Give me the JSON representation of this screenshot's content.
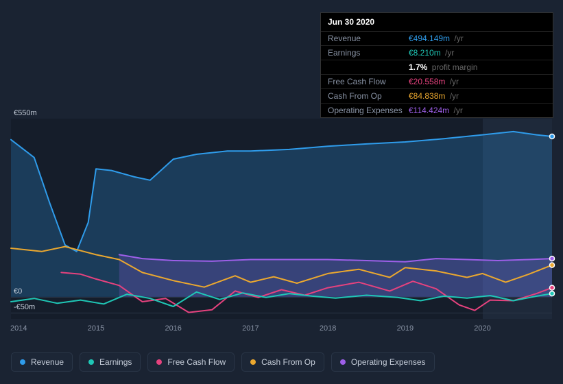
{
  "tooltip": {
    "date": "Jun 30 2020",
    "rows": [
      {
        "label": "Revenue",
        "value": "€494.149m",
        "unit": "/yr",
        "cls": "v-revenue"
      },
      {
        "label": "Earnings",
        "value": "€8.210m",
        "unit": "/yr",
        "cls": "v-earnings"
      },
      {
        "label": "",
        "value": "1.7%",
        "unit": "profit margin",
        "cls": "v-white"
      },
      {
        "label": "Free Cash Flow",
        "value": "€20.558m",
        "unit": "/yr",
        "cls": "v-fcf"
      },
      {
        "label": "Cash From Op",
        "value": "€84.838m",
        "unit": "/yr",
        "cls": "v-cashop"
      },
      {
        "label": "Operating Expenses",
        "value": "€114.424m",
        "unit": "/yr",
        "cls": "v-opex"
      }
    ]
  },
  "chart": {
    "type": "line+area",
    "background_color": "#151d2a",
    "page_background": "#1a2332",
    "highlight_band": {
      "color": "rgba(50,65,90,0.35)",
      "from_x": 2020.0,
      "to_x": 2020.9
    },
    "y_axis": {
      "ticks": [
        {
          "value": 550,
          "label": "€550m"
        },
        {
          "value": 0,
          "label": "€0"
        },
        {
          "value": -50,
          "label": "-€50m"
        }
      ],
      "min": -68,
      "max": 550
    },
    "x_axis": {
      "min": 2013.9,
      "max": 2020.9,
      "ticks": [
        {
          "value": 2014,
          "label": "2014"
        },
        {
          "value": 2015,
          "label": "2015"
        },
        {
          "value": 2016,
          "label": "2016"
        },
        {
          "value": 2017,
          "label": "2017"
        },
        {
          "value": 2018,
          "label": "2018"
        },
        {
          "value": 2019,
          "label": "2019"
        },
        {
          "value": 2020,
          "label": "2020"
        }
      ]
    },
    "series": [
      {
        "name": "Revenue",
        "color": "#2f9ceb",
        "marker_end": true,
        "area": true,
        "area_opacity": 0.25,
        "points": [
          [
            2013.9,
            485
          ],
          [
            2014.2,
            430
          ],
          [
            2014.4,
            290
          ],
          [
            2014.6,
            160
          ],
          [
            2014.75,
            140
          ],
          [
            2014.9,
            230
          ],
          [
            2015.0,
            395
          ],
          [
            2015.2,
            390
          ],
          [
            2015.5,
            370
          ],
          [
            2015.7,
            360
          ],
          [
            2016.0,
            425
          ],
          [
            2016.3,
            440
          ],
          [
            2016.7,
            450
          ],
          [
            2017.0,
            450
          ],
          [
            2017.5,
            455
          ],
          [
            2018.0,
            465
          ],
          [
            2018.5,
            472
          ],
          [
            2019.0,
            478
          ],
          [
            2019.5,
            488
          ],
          [
            2020.0,
            500
          ],
          [
            2020.4,
            510
          ],
          [
            2020.7,
            500
          ],
          [
            2020.9,
            495
          ]
        ]
      },
      {
        "name": "Cash From Op",
        "color": "#eba82f",
        "marker_end": true,
        "area": false,
        "points": [
          [
            2013.9,
            150
          ],
          [
            2014.3,
            140
          ],
          [
            2014.6,
            155
          ],
          [
            2015.0,
            130
          ],
          [
            2015.3,
            115
          ],
          [
            2015.6,
            75
          ],
          [
            2016.0,
            50
          ],
          [
            2016.4,
            30
          ],
          [
            2016.8,
            65
          ],
          [
            2017.0,
            45
          ],
          [
            2017.3,
            62
          ],
          [
            2017.6,
            42
          ],
          [
            2018.0,
            72
          ],
          [
            2018.4,
            85
          ],
          [
            2018.8,
            60
          ],
          [
            2019.0,
            90
          ],
          [
            2019.4,
            80
          ],
          [
            2019.8,
            60
          ],
          [
            2020.0,
            72
          ],
          [
            2020.3,
            45
          ],
          [
            2020.6,
            70
          ],
          [
            2020.9,
            98
          ]
        ]
      },
      {
        "name": "Operating Expenses",
        "color": "#9d5fe8",
        "marker_end": true,
        "area": true,
        "area_opacity": 0.22,
        "start_x": 2015.3,
        "points": [
          [
            2015.3,
            130
          ],
          [
            2015.6,
            118
          ],
          [
            2016.0,
            112
          ],
          [
            2016.5,
            110
          ],
          [
            2017.0,
            115
          ],
          [
            2017.5,
            115
          ],
          [
            2018.0,
            115
          ],
          [
            2018.5,
            112
          ],
          [
            2019.0,
            108
          ],
          [
            2019.4,
            118
          ],
          [
            2019.8,
            115
          ],
          [
            2020.2,
            112
          ],
          [
            2020.6,
            115
          ],
          [
            2020.9,
            118
          ]
        ]
      },
      {
        "name": "Free Cash Flow",
        "color": "#e6427e",
        "marker_end": true,
        "area": false,
        "start_x": 2014.55,
        "points": [
          [
            2014.55,
            75
          ],
          [
            2014.8,
            70
          ],
          [
            2015.0,
            55
          ],
          [
            2015.3,
            35
          ],
          [
            2015.6,
            -15
          ],
          [
            2015.9,
            -5
          ],
          [
            2016.2,
            -48
          ],
          [
            2016.5,
            -40
          ],
          [
            2016.8,
            18
          ],
          [
            2017.1,
            -2
          ],
          [
            2017.4,
            22
          ],
          [
            2017.7,
            5
          ],
          [
            2018.0,
            28
          ],
          [
            2018.4,
            45
          ],
          [
            2018.8,
            18
          ],
          [
            2019.1,
            48
          ],
          [
            2019.4,
            25
          ],
          [
            2019.7,
            -25
          ],
          [
            2019.9,
            -42
          ],
          [
            2020.1,
            -10
          ],
          [
            2020.4,
            -12
          ],
          [
            2020.7,
            10
          ],
          [
            2020.9,
            28
          ]
        ]
      },
      {
        "name": "Earnings",
        "color": "#1fc7b6",
        "marker_end": true,
        "area": false,
        "points": [
          [
            2013.9,
            -15
          ],
          [
            2014.2,
            -5
          ],
          [
            2014.5,
            -20
          ],
          [
            2014.8,
            -10
          ],
          [
            2015.1,
            -22
          ],
          [
            2015.4,
            8
          ],
          [
            2015.7,
            -5
          ],
          [
            2016.0,
            -30
          ],
          [
            2016.3,
            15
          ],
          [
            2016.6,
            -8
          ],
          [
            2016.9,
            12
          ],
          [
            2017.2,
            -2
          ],
          [
            2017.5,
            10
          ],
          [
            2017.8,
            2
          ],
          [
            2018.1,
            -4
          ],
          [
            2018.5,
            5
          ],
          [
            2018.9,
            -2
          ],
          [
            2019.2,
            -12
          ],
          [
            2019.5,
            2
          ],
          [
            2019.8,
            -4
          ],
          [
            2020.1,
            4
          ],
          [
            2020.4,
            -12
          ],
          [
            2020.7,
            2
          ],
          [
            2020.9,
            10
          ]
        ]
      }
    ],
    "legend": [
      {
        "label": "Revenue",
        "color": "#2f9ceb"
      },
      {
        "label": "Earnings",
        "color": "#1fc7b6"
      },
      {
        "label": "Free Cash Flow",
        "color": "#e6427e"
      },
      {
        "label": "Cash From Op",
        "color": "#eba82f"
      },
      {
        "label": "Operating Expenses",
        "color": "#9d5fe8"
      }
    ],
    "line_width": 2,
    "marker_radius": 3.5
  }
}
